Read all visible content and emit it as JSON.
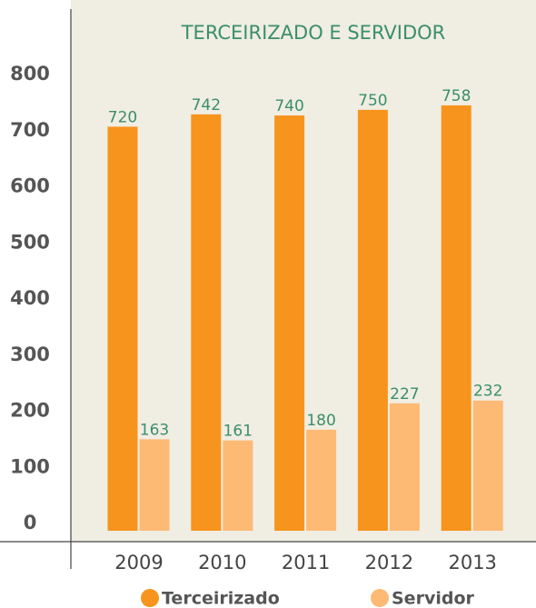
{
  "chart_data": {
    "type": "bar",
    "title": "TERCEIRIZADO E SERVIDOR",
    "categories": [
      "2009",
      "2010",
      "2011",
      "2012",
      "2013"
    ],
    "series": [
      {
        "name": "Terceirizado",
        "color": "#f7941d",
        "values": [
          720,
          742,
          740,
          750,
          758
        ]
      },
      {
        "name": "Servidor",
        "color": "#fdba74",
        "values": [
          163,
          161,
          180,
          227,
          232
        ]
      }
    ],
    "ylim": [
      0,
      800
    ],
    "yticks": [
      0,
      100,
      200,
      300,
      400,
      500,
      600,
      700,
      800
    ],
    "legend": "bottom",
    "background": "#f0ede3",
    "label_color": "#3a8f6a"
  }
}
